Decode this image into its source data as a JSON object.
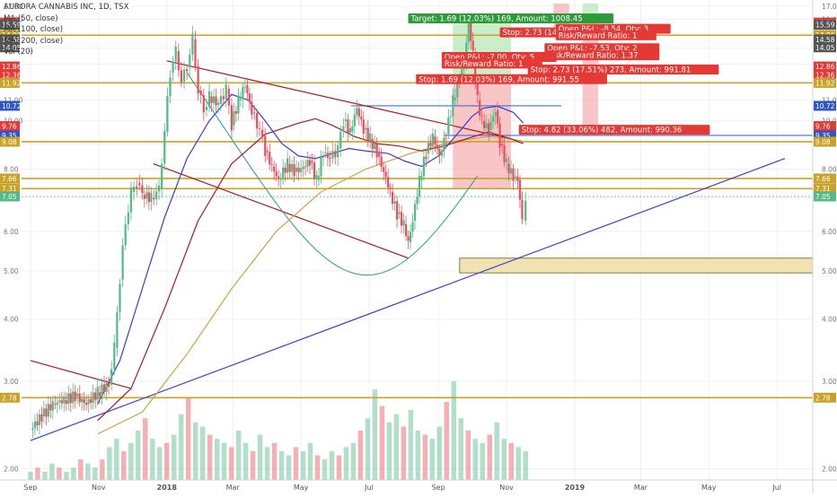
{
  "chart_data": {
    "type": "candlestick",
    "ylim": [
      1.9,
      17.2
    ],
    "log_scale": true,
    "grid": true,
    "colors": {
      "up": "#53b987",
      "down": "#eb4d5c",
      "background": "#ffffff",
      "grid": "#eef0f3",
      "hline": "#c9a227",
      "trend": "#3f3fd1",
      "ma50": "#3a3ad0",
      "ma100": "#a01d22",
      "ma200": "#c7a54a",
      "profit_zone": "#b7e8b7",
      "loss_zone": "#f6b3b3",
      "blue_line": "#3e6fd8",
      "teal": "#2a9d8f",
      "dark_red": "#8b1a1a"
    },
    "legend": {
      "title": "AURORA CANNABIS INC, 1D, TSX",
      "items": [
        "MA (50, close)",
        "MA (100, close)",
        "MA (200, close)",
        "Vol (20)"
      ]
    },
    "x_labels": [
      "Sep",
      "Nov",
      "2018",
      "Mar",
      "May",
      "Jul",
      "Sep",
      "Nov",
      "2019",
      "Mar",
      "May",
      "Jul"
    ],
    "x_label_days": [
      0,
      61,
      122,
      181,
      242,
      303,
      365,
      426,
      487,
      546,
      607,
      668
    ],
    "y_ticks": [
      2.0,
      3.0,
      4.0,
      5.0,
      6.0,
      7.0,
      8.0,
      9.0,
      10.0,
      11.0,
      12.0,
      13.0,
      14.0,
      15.0,
      16.0,
      17.0
    ],
    "y_tick_labels": [
      "2.00",
      "3.00",
      "4.00",
      "5.00",
      "6.00",
      "7.00",
      "8.00",
      "",
      "10.00",
      "11.00",
      "",
      "",
      "",
      "",
      "16.00",
      "17.00"
    ],
    "horizontal_levels": [
      14.86,
      11.92,
      9.08,
      7.66,
      7.31,
      2.78
    ],
    "blue_levels": [
      {
        "price": 10.72,
        "from_day": 287,
        "to_day": 475
      },
      {
        "price": 9.35,
        "from_day": 370,
        "to_day": 740
      }
    ],
    "price_badges": [
      {
        "value": "15.74",
        "price": 15.74,
        "color": "#2e7d32"
      },
      {
        "value": "15.75",
        "price": 15.75,
        "color": "#e53935"
      },
      {
        "value": "15.59",
        "price": 15.59,
        "color": "#555555"
      },
      {
        "value": "14.86",
        "price": 14.86,
        "color": "#c9a227"
      },
      {
        "value": "14.58",
        "price": 14.58,
        "color": "#555555"
      },
      {
        "value": "14.05",
        "price": 14.05,
        "color": "#555555"
      },
      {
        "value": "12.86",
        "price": 12.86,
        "color": "#e53935"
      },
      {
        "value": "12.36",
        "price": 12.36,
        "color": "#e53935"
      },
      {
        "value": "11.92",
        "price": 11.92,
        "color": "#c9a227"
      },
      {
        "value": "10.72",
        "price": 10.72,
        "color": "#2f55c8"
      },
      {
        "value": "9.76",
        "price": 9.76,
        "color": "#e53935"
      },
      {
        "value": "9.35",
        "price": 9.35,
        "color": "#2f55c8"
      },
      {
        "value": "9.08",
        "price": 9.08,
        "color": "#c9a227"
      },
      {
        "value": "7.66",
        "price": 7.66,
        "color": "#c9a227"
      },
      {
        "value": "7.31",
        "price": 7.31,
        "color": "#c9a227"
      },
      {
        "value": "7.05",
        "price": 7.05,
        "color": "#53b987"
      },
      {
        "value": "2.78",
        "price": 2.78,
        "color": "#c9a227"
      }
    ],
    "price_series": [
      {
        "day": 0,
        "close": 2.4
      },
      {
        "day": 10,
        "close": 2.55
      },
      {
        "day": 20,
        "close": 2.7
      },
      {
        "day": 30,
        "close": 2.75
      },
      {
        "day": 40,
        "close": 2.8
      },
      {
        "day": 50,
        "close": 2.7
      },
      {
        "day": 60,
        "close": 2.85
      },
      {
        "day": 70,
        "close": 2.95
      },
      {
        "day": 75,
        "close": 3.5
      },
      {
        "day": 80,
        "close": 4.8
      },
      {
        "day": 85,
        "close": 6.2
      },
      {
        "day": 90,
        "close": 7.2
      },
      {
        "day": 95,
        "close": 7.5
      },
      {
        "day": 100,
        "close": 7.1
      },
      {
        "day": 108,
        "close": 7.0
      },
      {
        "day": 115,
        "close": 7.3
      },
      {
        "day": 120,
        "close": 9.5
      },
      {
        "day": 125,
        "close": 12.5
      },
      {
        "day": 130,
        "close": 13.8
      },
      {
        "day": 135,
        "close": 12.0
      },
      {
        "day": 140,
        "close": 12.8
      },
      {
        "day": 145,
        "close": 14.6
      },
      {
        "day": 150,
        "close": 11.5
      },
      {
        "day": 155,
        "close": 10.5
      },
      {
        "day": 160,
        "close": 11.2
      },
      {
        "day": 168,
        "close": 10.8
      },
      {
        "day": 175,
        "close": 11.6
      },
      {
        "day": 180,
        "close": 9.8
      },
      {
        "day": 186,
        "close": 11.0
      },
      {
        "day": 192,
        "close": 11.8
      },
      {
        "day": 198,
        "close": 10.4
      },
      {
        "day": 205,
        "close": 9.6
      },
      {
        "day": 210,
        "close": 8.7
      },
      {
        "day": 216,
        "close": 8.1
      },
      {
        "day": 222,
        "close": 7.6
      },
      {
        "day": 230,
        "close": 8.2
      },
      {
        "day": 236,
        "close": 7.9
      },
      {
        "day": 242,
        "close": 8.0
      },
      {
        "day": 250,
        "close": 8.3
      },
      {
        "day": 256,
        "close": 7.6
      },
      {
        "day": 262,
        "close": 8.6
      },
      {
        "day": 268,
        "close": 8.4
      },
      {
        "day": 275,
        "close": 8.8
      },
      {
        "day": 280,
        "close": 10.0
      },
      {
        "day": 286,
        "close": 9.5
      },
      {
        "day": 292,
        "close": 10.6
      },
      {
        "day": 298,
        "close": 9.6
      },
      {
        "day": 304,
        "close": 9.2
      },
      {
        "day": 310,
        "close": 8.6
      },
      {
        "day": 316,
        "close": 7.9
      },
      {
        "day": 322,
        "close": 7.2
      },
      {
        "day": 328,
        "close": 6.5
      },
      {
        "day": 334,
        "close": 6.2
      },
      {
        "day": 338,
        "close": 5.7
      },
      {
        "day": 342,
        "close": 6.3
      },
      {
        "day": 348,
        "close": 7.6
      },
      {
        "day": 354,
        "close": 8.6
      },
      {
        "day": 360,
        "close": 9.3
      },
      {
        "day": 366,
        "close": 8.5
      },
      {
        "day": 372,
        "close": 9.4
      },
      {
        "day": 378,
        "close": 11.0
      },
      {
        "day": 384,
        "close": 12.2
      },
      {
        "day": 388,
        "close": 13.0
      },
      {
        "day": 392,
        "close": 15.8
      },
      {
        "day": 396,
        "close": 13.6
      },
      {
        "day": 400,
        "close": 11.0
      },
      {
        "day": 404,
        "close": 10.0
      },
      {
        "day": 410,
        "close": 9.6
      },
      {
        "day": 416,
        "close": 10.5
      },
      {
        "day": 420,
        "close": 9.0
      },
      {
        "day": 426,
        "close": 8.2
      },
      {
        "day": 432,
        "close": 7.7
      },
      {
        "day": 436,
        "close": 7.6
      },
      {
        "day": 440,
        "close": 6.3
      },
      {
        "day": 443,
        "close": 7.05
      }
    ],
    "ma50": [
      {
        "day": 60,
        "value": 2.7
      },
      {
        "day": 80,
        "value": 3.3
      },
      {
        "day": 100,
        "value": 4.6
      },
      {
        "day": 120,
        "value": 6.4
      },
      {
        "day": 140,
        "value": 8.4
      },
      {
        "day": 160,
        "value": 10.0
      },
      {
        "day": 180,
        "value": 11.3
      },
      {
        "day": 195,
        "value": 11.0
      },
      {
        "day": 210,
        "value": 10.0
      },
      {
        "day": 225,
        "value": 9.0
      },
      {
        "day": 240,
        "value": 8.5
      },
      {
        "day": 255,
        "value": 8.4
      },
      {
        "day": 270,
        "value": 8.6
      },
      {
        "day": 285,
        "value": 8.8
      },
      {
        "day": 300,
        "value": 8.7
      },
      {
        "day": 320,
        "value": 8.6
      },
      {
        "day": 335,
        "value": 8.3
      },
      {
        "day": 350,
        "value": 8.1
      },
      {
        "day": 365,
        "value": 8.5
      },
      {
        "day": 380,
        "value": 9.3
      },
      {
        "day": 395,
        "value": 10.2
      },
      {
        "day": 405,
        "value": 10.6
      },
      {
        "day": 418,
        "value": 10.7
      },
      {
        "day": 432,
        "value": 10.4
      },
      {
        "day": 441,
        "value": 9.9
      }
    ],
    "ma100": [
      {
        "day": 60,
        "value": 2.5
      },
      {
        "day": 90,
        "value": 2.9
      },
      {
        "day": 120,
        "value": 4.2
      },
      {
        "day": 150,
        "value": 6.3
      },
      {
        "day": 180,
        "value": 8.2
      },
      {
        "day": 210,
        "value": 9.4
      },
      {
        "day": 240,
        "value": 9.9
      },
      {
        "day": 255,
        "value": 10.1
      },
      {
        "day": 270,
        "value": 9.8
      },
      {
        "day": 290,
        "value": 9.3
      },
      {
        "day": 310,
        "value": 9.0
      },
      {
        "day": 330,
        "value": 8.9
      },
      {
        "day": 350,
        "value": 8.7
      },
      {
        "day": 370,
        "value": 8.9
      },
      {
        "day": 390,
        "value": 9.2
      },
      {
        "day": 410,
        "value": 9.5
      },
      {
        "day": 430,
        "value": 9.2
      },
      {
        "day": 441,
        "value": 9.0
      }
    ],
    "ma200": [
      {
        "day": 60,
        "value": 2.35
      },
      {
        "day": 100,
        "value": 2.6
      },
      {
        "day": 140,
        "value": 3.4
      },
      {
        "day": 180,
        "value": 4.6
      },
      {
        "day": 220,
        "value": 6.0
      },
      {
        "day": 260,
        "value": 7.2
      },
      {
        "day": 300,
        "value": 8.0
      },
      {
        "day": 340,
        "value": 8.6
      },
      {
        "day": 380,
        "value": 9.1
      },
      {
        "day": 410,
        "value": 9.3
      },
      {
        "day": 430,
        "value": 9.2
      },
      {
        "day": 441,
        "value": 9.1
      }
    ],
    "trendlines": [
      {
        "name": "lower-support",
        "from": {
          "day": 0,
          "price": 2.28
        },
        "to": {
          "day": 675,
          "price": 8.4
        },
        "color": "#3f3fd1"
      },
      {
        "name": "upper-resistance",
        "from": {
          "day": 122,
          "price": 13.2
        },
        "to": {
          "day": 430,
          "price": 9.2
        },
        "color": "#a01d22"
      },
      {
        "name": "lower-red",
        "from": {
          "day": 110,
          "price": 8.2
        },
        "to": {
          "day": 338,
          "price": 5.3
        },
        "color": "#a01d22"
      },
      {
        "name": "early-red",
        "from": {
          "day": 0,
          "price": 3.3
        },
        "to": {
          "day": 90,
          "price": 2.9
        },
        "color": "#a01d22"
      }
    ],
    "volume": [
      0.2,
      0.3,
      0.2,
      0.4,
      0.3,
      0.2,
      0.3,
      0.5,
      0.4,
      0.3,
      0.5,
      0.8,
      1.0,
      0.7,
      0.9,
      1.2,
      1.5,
      1.0,
      0.8,
      0.9,
      1.1,
      1.6,
      2.0,
      1.4,
      1.3,
      1.1,
      1.0,
      0.9,
      0.8,
      1.2,
      0.9,
      0.7,
      1.1,
      0.8,
      0.9,
      0.7,
      0.6,
      0.8,
      0.7,
      0.9,
      0.6,
      0.5,
      0.7,
      0.6,
      0.8,
      0.9,
      1.2,
      1.5,
      2.2,
      1.8,
      1.4,
      1.6,
      1.3,
      1.7,
      1.2,
      1.1,
      1.0,
      1.3,
      1.9,
      2.4,
      1.5,
      1.2,
      1.0,
      0.9,
      1.1,
      1.4,
      1.0,
      0.9,
      0.8,
      0.7
    ],
    "zones": [
      {
        "name": "target-profit",
        "from_day": 378,
        "to_day": 430,
        "price_top": 15.74,
        "price_bottom": 11.92,
        "color": "#b7e8b7"
      },
      {
        "name": "stop-loss",
        "from_day": 378,
        "to_day": 430,
        "price_top": 11.92,
        "price_bottom": 7.31,
        "color": "#f6b3b3"
      },
      {
        "name": "stop-strip-1",
        "from_day": 468,
        "to_day": 482,
        "price_top": 17.2,
        "price_bottom": 14.86,
        "color": "#f6b3b3"
      },
      {
        "name": "profit-strip-1",
        "from_day": 494,
        "to_day": 508,
        "price_top": 17.2,
        "price_bottom": 14.86,
        "color": "#b7e8b7"
      },
      {
        "name": "stop-strip-2",
        "from_day": 494,
        "to_day": 508,
        "price_top": 14.86,
        "price_bottom": 9.35,
        "color": "#f6b3b3"
      },
      {
        "name": "support-box",
        "from_day": 384,
        "to_day": 740,
        "price_top": 5.3,
        "price_bottom": 4.95,
        "color": "#efe0a8"
      }
    ],
    "labels": [
      {
        "text": "Target: 1.69 (12.03%) 169, Amount: 1008.45",
        "day": 338,
        "price": 15.9,
        "color": "#2e9a3a"
      },
      {
        "text": "Stop: 2.73 (14.77%",
        "day": 420,
        "price": 14.9,
        "color": "#e53935"
      },
      {
        "text": "Open P&L: -8.54, Qty: 3",
        "day": 470,
        "price": 15.15,
        "color": "#e53935"
      },
      {
        "text": "Risk/Reward Ratio: 1",
        "day": 470,
        "price": 14.7,
        "color": "#e53935"
      },
      {
        "text": "Open P&L: -7.53, Qty: 2",
        "day": 460,
        "price": 13.85,
        "color": "#e53935"
      },
      {
        "text": "Risk/Reward Ratio: 1.37",
        "day": 460,
        "price": 13.4,
        "color": "#e53935"
      },
      {
        "text": "Open P&L: -7.00, Qty: 5",
        "day": 368,
        "price": 13.3,
        "color": "#e53935"
      },
      {
        "text": "Risk/Reward Ratio: 1",
        "day": 368,
        "price": 12.9,
        "color": "#e53935"
      },
      {
        "text": "Stop: 2.73 (17.51%) 273, Amount: 991.81",
        "day": 445,
        "price": 12.55,
        "color": "#e53935"
      },
      {
        "text": "Stop: 1.69 (12.03%) 169, Amount: 991.55",
        "day": 345,
        "price": 12.0,
        "color": "#e53935"
      },
      {
        "text": "Stop: 4.82 (33.06%) 482, Amount: 990.36",
        "day": 437,
        "price": 9.5,
        "color": "#e53935"
      }
    ]
  }
}
